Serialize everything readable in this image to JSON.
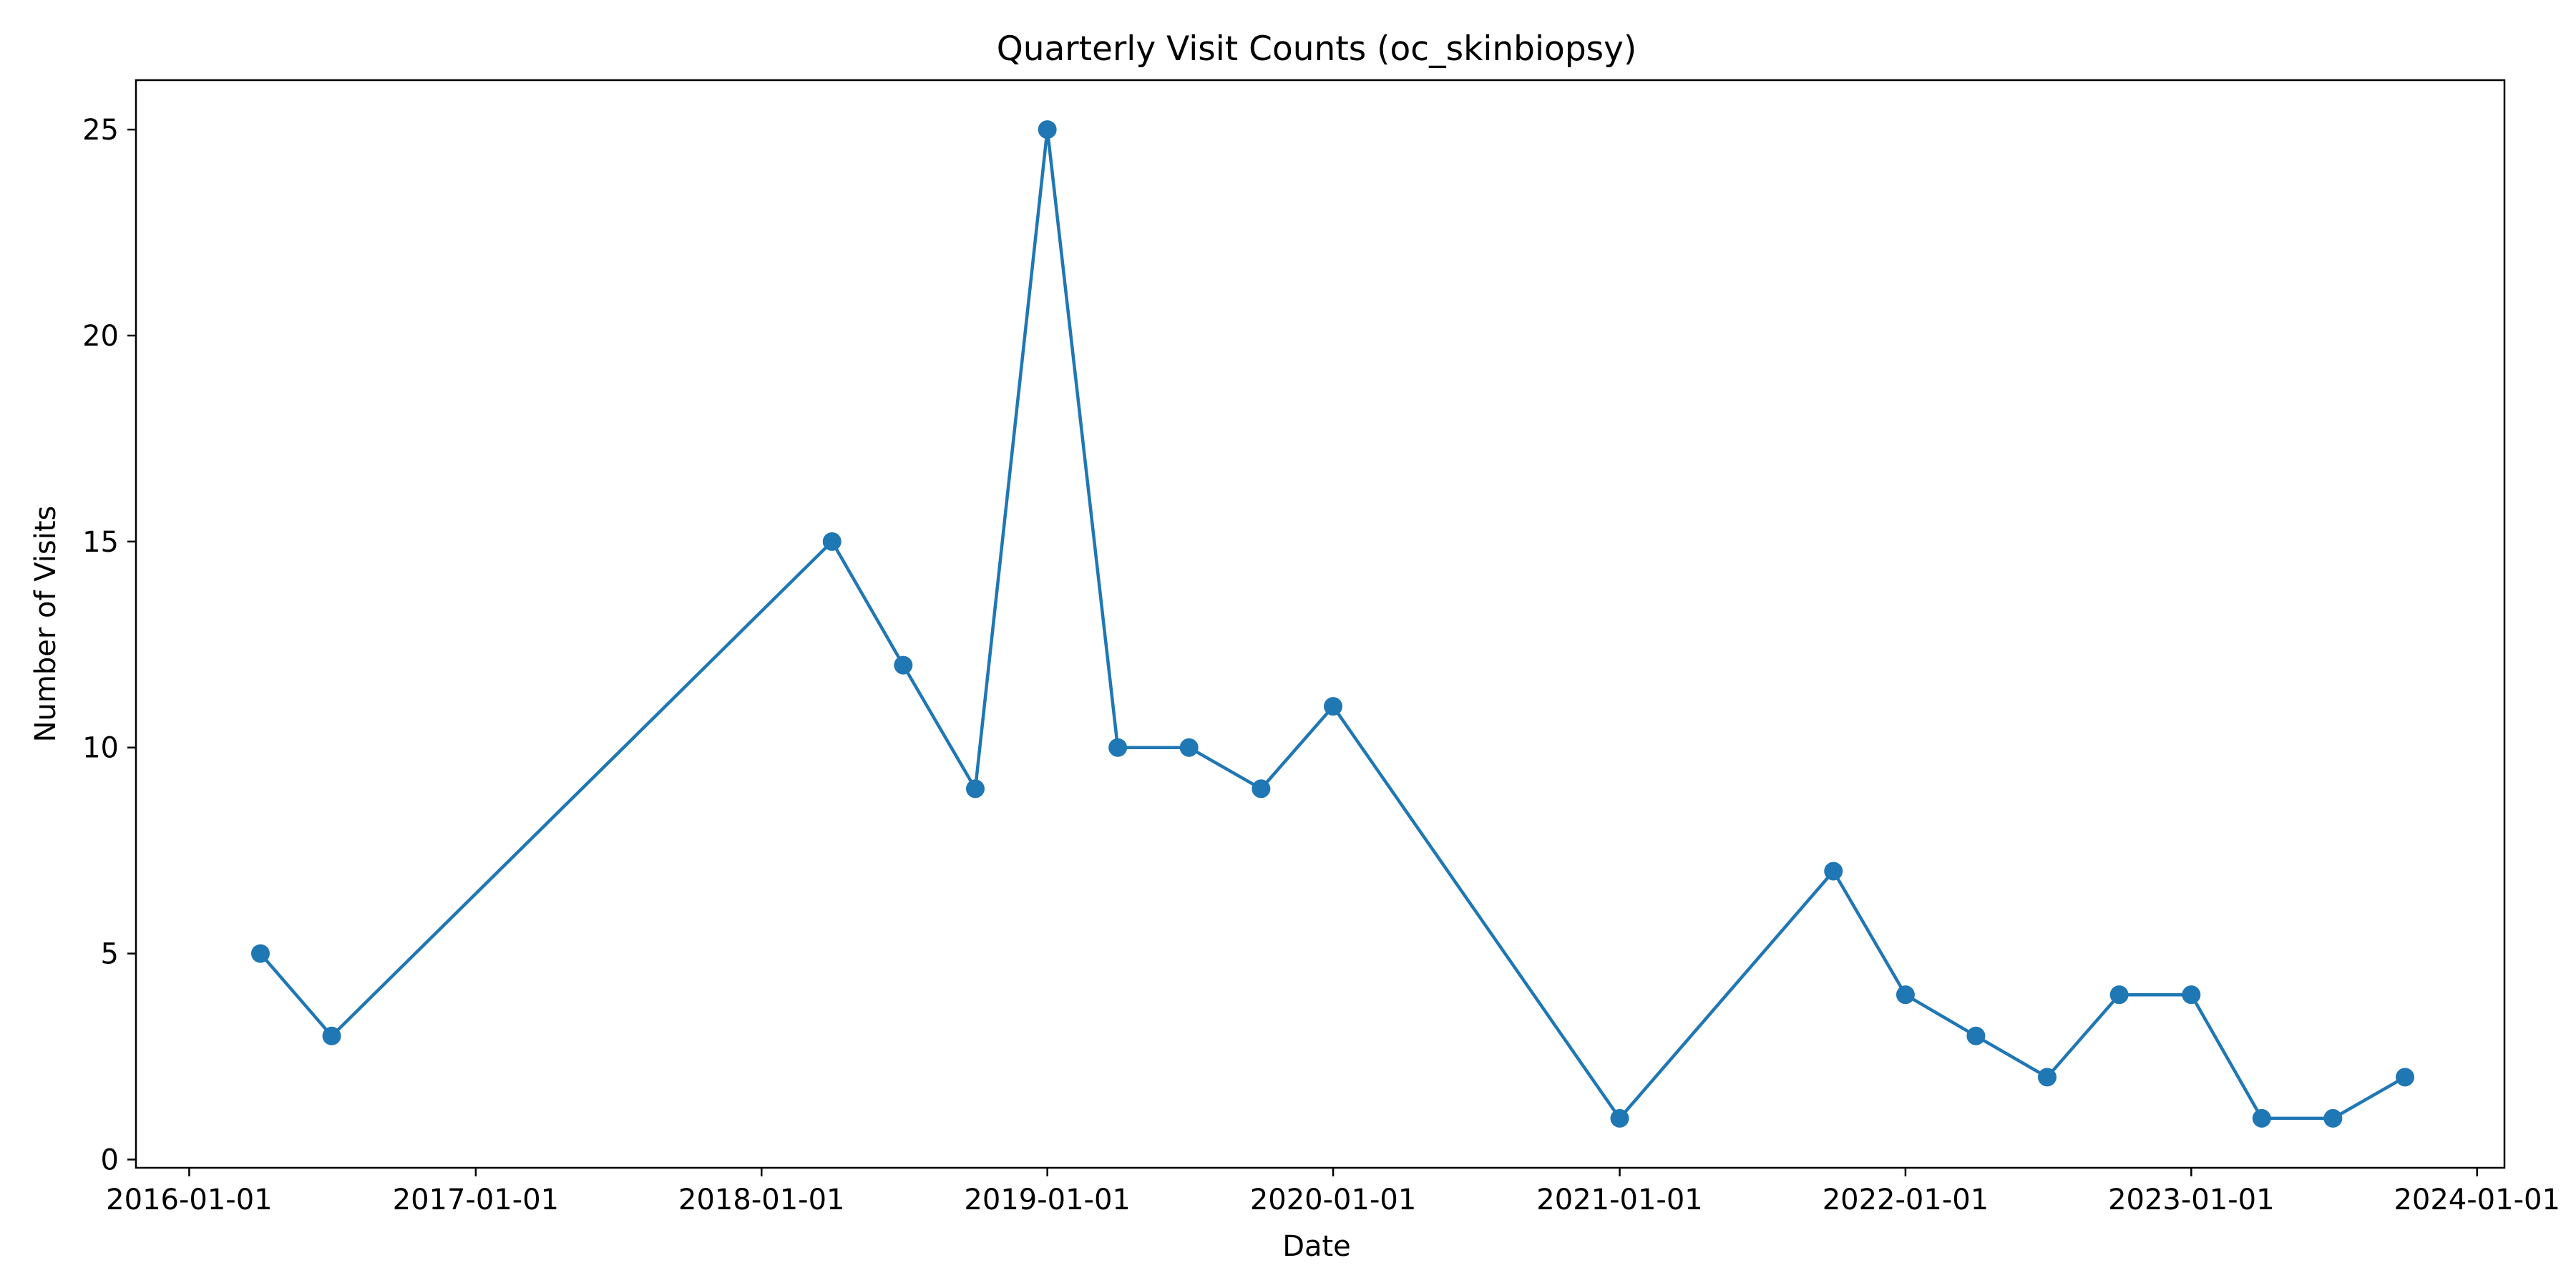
{
  "chart_data": {
    "type": "line",
    "title": "Quarterly Visit Counts (oc_skinbiopsy)",
    "xlabel": "Date",
    "ylabel": "Number of Visits",
    "x_ticks": [
      "2016-01-01",
      "2017-01-01",
      "2018-01-01",
      "2019-01-01",
      "2020-01-01",
      "2021-01-01",
      "2022-01-01",
      "2023-01-01",
      "2024-01-01"
    ],
    "y_ticks": [
      0,
      5,
      10,
      15,
      20,
      25
    ],
    "xlim": [
      "2015-10-25",
      "2024-02-05"
    ],
    "ylim": [
      -0.2,
      26.2
    ],
    "grid": false,
    "legend": "none",
    "marker": "circle",
    "color": "#1f77b4",
    "series": [
      {
        "points": [
          {
            "x": "2016-04-01",
            "y": 5
          },
          {
            "x": "2016-07-01",
            "y": 3
          },
          {
            "x": "2018-04-01",
            "y": 15
          },
          {
            "x": "2018-07-01",
            "y": 12
          },
          {
            "x": "2018-10-01",
            "y": 9
          },
          {
            "x": "2019-01-01",
            "y": 25
          },
          {
            "x": "2019-04-01",
            "y": 10
          },
          {
            "x": "2019-07-01",
            "y": 10
          },
          {
            "x": "2019-10-01",
            "y": 9
          },
          {
            "x": "2020-01-01",
            "y": 11
          },
          {
            "x": "2021-01-01",
            "y": 1
          },
          {
            "x": "2021-10-01",
            "y": 7
          },
          {
            "x": "2022-01-01",
            "y": 4
          },
          {
            "x": "2022-04-01",
            "y": 3
          },
          {
            "x": "2022-07-01",
            "y": 2
          },
          {
            "x": "2022-10-01",
            "y": 4
          },
          {
            "x": "2023-01-01",
            "y": 4
          },
          {
            "x": "2023-04-01",
            "y": 1
          },
          {
            "x": "2023-07-01",
            "y": 1
          },
          {
            "x": "2023-10-01",
            "y": 2
          }
        ]
      }
    ]
  }
}
